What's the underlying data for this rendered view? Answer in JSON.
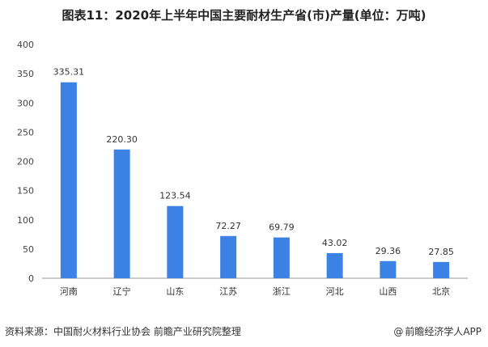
{
  "title": "图表11：2020年上半年中国主要耐材生产省(市)产量(单位：万吨)",
  "footer": {
    "source": "资料来源：中国耐火材料行业协会 前瞻产业研究院整理",
    "app": "前瞻经济学人APP"
  },
  "colors": {
    "bar": "#3b82e4",
    "axis": "#999999"
  },
  "chart_data": {
    "type": "bar",
    "title": "图表11：2020年上半年中国主要耐材生产省(市)产量(单位：万吨)",
    "xlabel": "",
    "ylabel": "",
    "categories": [
      "河南",
      "辽宁",
      "山东",
      "江苏",
      "浙江",
      "河北",
      "山西",
      "北京"
    ],
    "values": [
      335.31,
      220.3,
      123.54,
      72.27,
      69.79,
      43.02,
      29.36,
      27.85
    ],
    "value_labels": [
      "335.31",
      "220.30",
      "123.54",
      "72.27",
      "69.79",
      "43.02",
      "29.36",
      "27.85"
    ],
    "ylim": [
      0,
      400
    ],
    "yticks": [
      0,
      50,
      100,
      150,
      200,
      250,
      300,
      350,
      400
    ],
    "grid": false,
    "legend": "none"
  }
}
